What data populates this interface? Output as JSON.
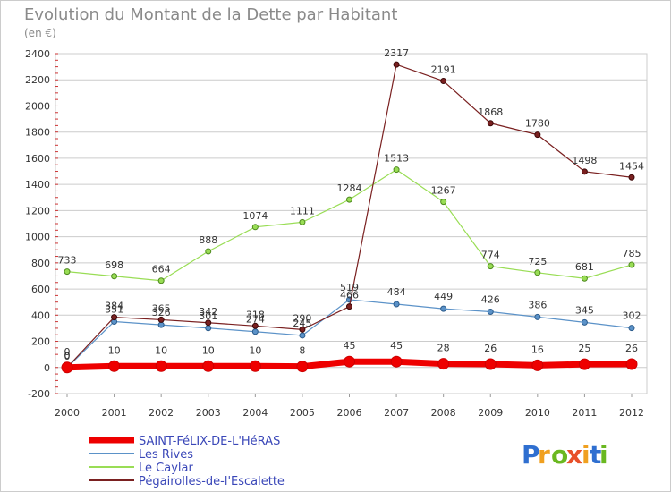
{
  "colors": {
    "saint_felix": "#ee0000",
    "les_rives": "#5b92c8",
    "le_caylar": "#99dd55",
    "pegairolles": "#7a2020",
    "grid": "#cccccc",
    "axis": "#999999"
  },
  "chart_data": {
    "type": "line",
    "title": "Evolution du Montant de la Dette par Habitant",
    "subtitle": "(en €)",
    "categories": [
      "2000",
      "2001",
      "2002",
      "2003",
      "2004",
      "2005",
      "2006",
      "2007",
      "2008",
      "2009",
      "2010",
      "2011",
      "2012"
    ],
    "ylim": [
      -200,
      2400
    ],
    "yticks": [
      -200,
      0,
      200,
      400,
      600,
      800,
      1000,
      1200,
      1400,
      1600,
      1800,
      2000,
      2200,
      2400
    ],
    "grid": true,
    "legend_position": "bottom-left",
    "series": [
      {
        "name": "SAINT-FéLIX-DE-L'HéRAS",
        "key": "saint_felix",
        "values": [
          0,
          10,
          10,
          10,
          10,
          8,
          45,
          45,
          28,
          26,
          16,
          25,
          26
        ],
        "labels": [
          "0",
          "10",
          "10",
          "10",
          "10",
          "8",
          "45",
          "45",
          "28",
          "26",
          "16",
          "25",
          "26"
        ]
      },
      {
        "name": "Les Rives",
        "key": "les_rives",
        "values": [
          0,
          351,
          326,
          301,
          274,
          245,
          519,
          484,
          449,
          426,
          386,
          345,
          302
        ],
        "labels": [
          "0",
          "351",
          "326",
          "301",
          "274",
          "245",
          "519",
          "484",
          "449",
          "426",
          "386",
          "345",
          "302"
        ]
      },
      {
        "name": "Le Caylar",
        "key": "le_caylar",
        "values": [
          733,
          698,
          664,
          888,
          1074,
          1111,
          1284,
          1513,
          1267,
          774,
          725,
          681,
          785
        ],
        "labels": [
          "733",
          "698",
          "664",
          "888",
          "1074",
          "1111",
          "1284",
          "1513",
          "1267",
          "774",
          "725",
          "681",
          "785"
        ]
      },
      {
        "name": "Pégairolles-de-l'Escalette",
        "key": "pegairolles",
        "values": [
          0,
          384,
          365,
          342,
          318,
          290,
          466,
          2317,
          2191,
          1868,
          1780,
          1498,
          1454
        ],
        "labels": [
          "0",
          "384",
          "365",
          "342",
          "318",
          "290",
          "466",
          "2317",
          "2191",
          "1868",
          "1780",
          "1498",
          "1454"
        ]
      }
    ]
  },
  "logo": {
    "text": "Proxiti"
  }
}
